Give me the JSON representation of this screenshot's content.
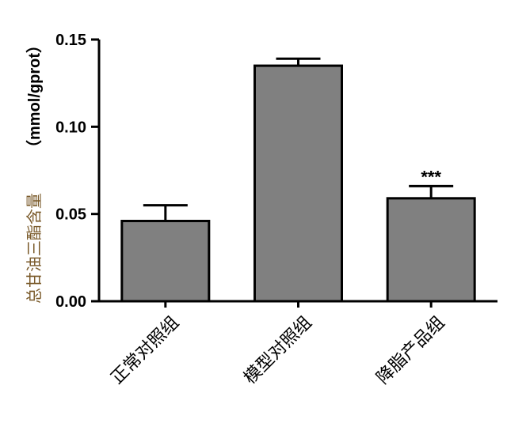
{
  "chart_data": {
    "type": "bar",
    "categories": [
      "正常对照组",
      "模型对照组",
      "降脂产品组"
    ],
    "values": [
      0.046,
      0.135,
      0.059
    ],
    "errors": [
      0.009,
      0.004,
      0.007
    ],
    "annotations": [
      "",
      "",
      "***"
    ],
    "ylabel_cn": "总甘油三酯含量",
    "ylabel_unit": "（mmol/gprot）",
    "ylim": [
      0,
      0.15
    ],
    "yticks": [
      "0.00",
      "0.05",
      "0.10",
      "0.15"
    ],
    "bar_color": "#808080",
    "grid": false
  }
}
